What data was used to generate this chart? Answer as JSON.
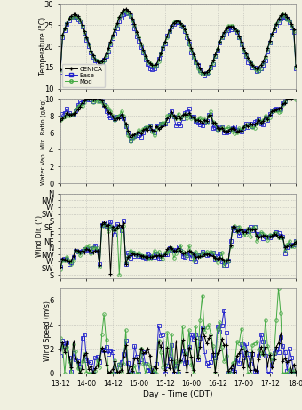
{
  "xlabel": "Day – Time (CDT)",
  "xtick_labels": [
    "13-12",
    "14-00",
    "14-12",
    "15-00",
    "15-12",
    "16-00",
    "16-12",
    "17-00",
    "17-12",
    "18-0"
  ],
  "legend_labels": [
    "CENICA",
    "Base",
    "Mod"
  ],
  "colors": [
    "black",
    "#2222cc",
    "#44aa44"
  ],
  "markers": [
    "+",
    "s",
    "o"
  ],
  "subplot_ylabels": [
    "Temperature (°C)",
    "Water Vap. Mix. Ratio (g/kg)",
    "Wind Dir. (°)",
    "Wind Speed (m/s)"
  ],
  "temp_ylim": [
    10,
    30
  ],
  "temp_yticks": [
    10,
    15,
    20,
    25,
    30
  ],
  "wvmr_ylim": [
    0,
    10
  ],
  "wvmr_yticks": [
    0,
    2,
    4,
    6,
    8,
    10
  ],
  "wdir_ylim": [
    -202.5,
    360
  ],
  "wdir_yticks_vals": [
    -180,
    -135,
    -90,
    -45,
    0,
    45,
    90,
    135,
    180,
    225,
    270,
    315,
    360
  ],
  "wdir_ytick_labels": [
    "S",
    "SW",
    "W",
    "NW",
    "N",
    "NE",
    "E",
    "SE",
    "S",
    "SW",
    "W",
    "NW",
    "N"
  ],
  "wspd_ylim": [
    0,
    7
  ],
  "wspd_yticks": [
    0,
    2,
    4,
    6
  ],
  "background_color": "#f0f0e0",
  "grid_color": "#999999",
  "n_points": 109
}
